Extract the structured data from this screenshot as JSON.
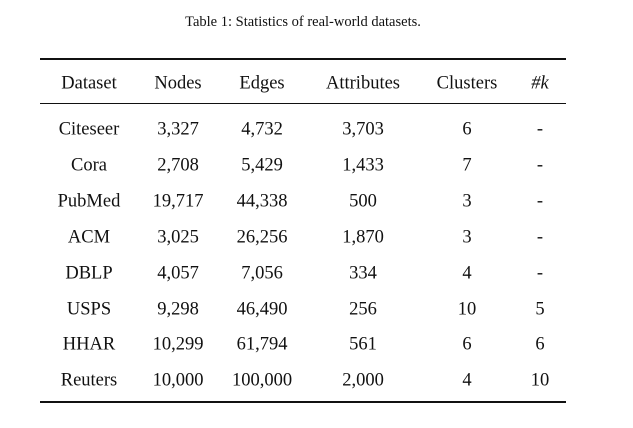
{
  "caption": "Table 1: Statistics of real-world datasets.",
  "table": {
    "header": [
      "Dataset",
      "Nodes",
      "Edges",
      "Attributes",
      "Clusters",
      "#k"
    ],
    "rows": [
      [
        "Citeseer",
        "3,327",
        "4,732",
        "3,703",
        "6",
        "-"
      ],
      [
        "Cora",
        "2,708",
        "5,429",
        "1,433",
        "7",
        "-"
      ],
      [
        "PubMed",
        "19,717",
        "44,338",
        "500",
        "3",
        "-"
      ],
      [
        "ACM",
        "3,025",
        "26,256",
        "1,870",
        "3",
        "-"
      ],
      [
        "DBLP",
        "4,057",
        "7,056",
        "334",
        "4",
        "-"
      ],
      [
        "USPS",
        "9,298",
        "46,490",
        "256",
        "10",
        "5"
      ],
      [
        "HHAR",
        "10,299",
        "61,794",
        "561",
        "6",
        "6"
      ],
      [
        "Reuters",
        "10,000",
        "100,000",
        "2,000",
        "4",
        "10"
      ]
    ]
  }
}
